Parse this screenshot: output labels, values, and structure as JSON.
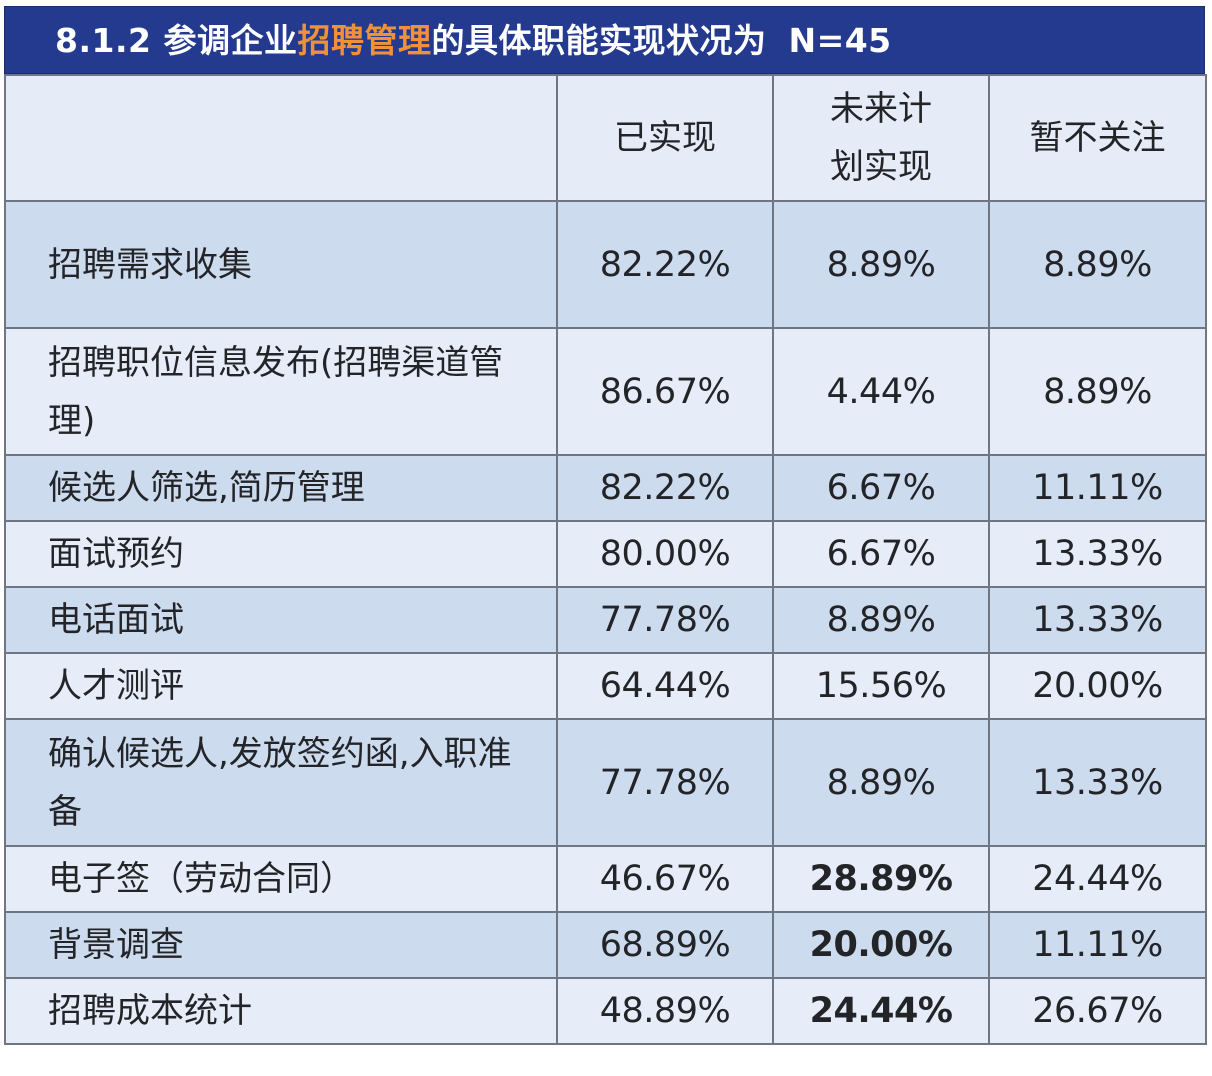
{
  "title": {
    "prefix": "8.1.2  参调企业",
    "highlight": "招聘管理",
    "suffix": "的具体职能实现状况为",
    "sample": "N=45",
    "colors": {
      "background": "#243a8f",
      "text": "#ffffff",
      "highlight": "#f0913a"
    }
  },
  "table": {
    "headers": [
      "",
      "已实现",
      "未来计\n划实现",
      "暂不关注"
    ],
    "header_lines": {
      "col1": [
        "已实现"
      ],
      "col2": [
        "未来计",
        "划实现"
      ],
      "col3": [
        "暂不关注"
      ]
    },
    "rows": [
      {
        "item": "招聘需求收集",
        "implemented": "82.22%",
        "planned": "8.89%",
        "not_concerned": "8.89%",
        "planned_bold": false
      },
      {
        "item": "招聘职位信息发布(招聘渠道管理)",
        "implemented": "86.67%",
        "planned": "4.44%",
        "not_concerned": "8.89%",
        "planned_bold": false
      },
      {
        "item": "候选人筛选,简历管理",
        "implemented": "82.22%",
        "planned": "6.67%",
        "not_concerned": "11.11%",
        "planned_bold": false
      },
      {
        "item": "面试预约",
        "implemented": "80.00%",
        "planned": "6.67%",
        "not_concerned": "13.33%",
        "planned_bold": false
      },
      {
        "item": "电话面试",
        "implemented": "77.78%",
        "planned": "8.89%",
        "not_concerned": "13.33%",
        "planned_bold": false
      },
      {
        "item": "人才测评",
        "implemented": "64.44%",
        "planned": "15.56%",
        "not_concerned": "20.00%",
        "planned_bold": false
      },
      {
        "item": "确认候选人,发放签约函,入职准备",
        "implemented": "77.78%",
        "planned": "8.89%",
        "not_concerned": "13.33%",
        "planned_bold": false
      },
      {
        "item": "电子签（劳动合同）",
        "implemented": "46.67%",
        "planned": "28.89%",
        "not_concerned": "24.44%",
        "planned_bold": true
      },
      {
        "item": "背景调查",
        "implemented": "68.89%",
        "planned": "20.00%",
        "not_concerned": "11.11%",
        "planned_bold": true
      },
      {
        "item": "招聘成本统计",
        "implemented": "48.89%",
        "planned": "24.44%",
        "not_concerned": "26.67%",
        "planned_bold": true
      }
    ],
    "colors": {
      "row_dark": "#cddbef",
      "row_light": "#e6edf8",
      "border": "#6f7683"
    }
  }
}
